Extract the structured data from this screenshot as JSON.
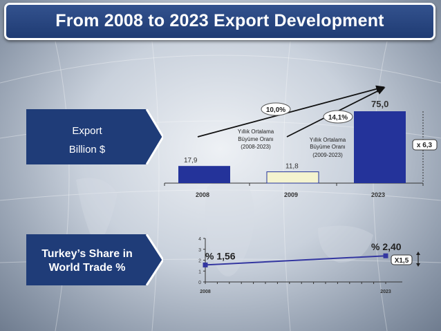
{
  "title": "From 2008 to 2023 Export Development",
  "export_box": {
    "line1": "Export",
    "line2": "Billion $"
  },
  "share_box": {
    "line1": "Turkey’s Share in",
    "line2": "World Trade %"
  },
  "colors": {
    "accent": "#1f3c78",
    "bar_fill": "#24339a",
    "bar_light": "#f4f3cf",
    "line": "#3336a0"
  },
  "chart_data": [
    {
      "type": "bar",
      "categories": [
        "2008",
        "2009",
        "2023"
      ],
      "values": [
        17.9,
        11.8,
        75.0
      ],
      "value_labels": [
        "17,9",
        "11,8",
        "75,0"
      ],
      "ylim": [
        0,
        80
      ],
      "annotations": {
        "growth1_pct": "10,0%",
        "growth1_lines": [
          "Yıllık Ortalama",
          "Büyüme Oranı",
          "(2008-2023)"
        ],
        "growth2_pct": "14,1%",
        "growth2_lines": [
          "Yıllık Ortalama",
          "Büyüme Oranı",
          "(2009-2023)"
        ],
        "multiplier": "x 6,3"
      }
    },
    {
      "type": "line",
      "x": [
        "2008",
        "2023"
      ],
      "values": [
        1.56,
        2.4
      ],
      "value_labels": [
        "% 1,56",
        "% 2,40"
      ],
      "ylim": [
        0,
        4
      ],
      "yticks": [
        "0",
        "1",
        "2",
        "3",
        "4"
      ],
      "annotations": {
        "multiplier": "X1,5"
      }
    }
  ]
}
